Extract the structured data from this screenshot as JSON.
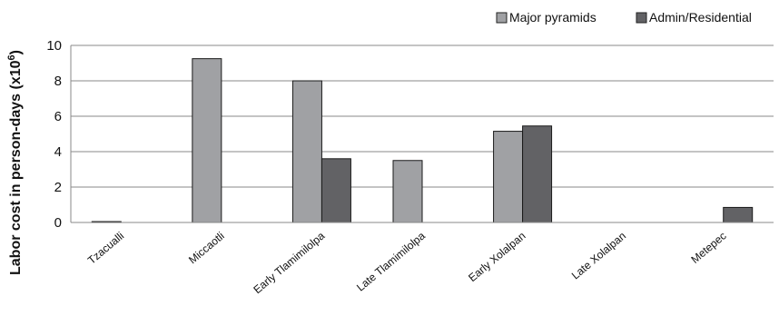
{
  "chart_data": {
    "type": "bar",
    "title": "",
    "xlabel": "",
    "ylabel": "Labor cost in person-days (x10",
    "ylabel_superscript": "6",
    "ylabel_suffix": ")",
    "ylim": [
      0,
      10
    ],
    "yticks": [
      "0",
      "2",
      "4",
      "6",
      "8",
      "10"
    ],
    "grid": true,
    "legend_position": "top-right",
    "categories": [
      "Tzacualli",
      "Miccaotli",
      "Early Tlamimilolpa",
      "Late Tlamimilolpa",
      "Early Xolalpan",
      "Late Xolalpan",
      "Metepec"
    ],
    "series": [
      {
        "name": "Major pyramids",
        "color": "#a0a1a4",
        "values": [
          0.05,
          9.25,
          8.0,
          3.5,
          5.15,
          0,
          0
        ]
      },
      {
        "name": "Admin/Residential",
        "color": "#626265",
        "values": [
          0,
          0,
          3.6,
          0,
          5.45,
          0,
          0.85
        ]
      }
    ]
  }
}
